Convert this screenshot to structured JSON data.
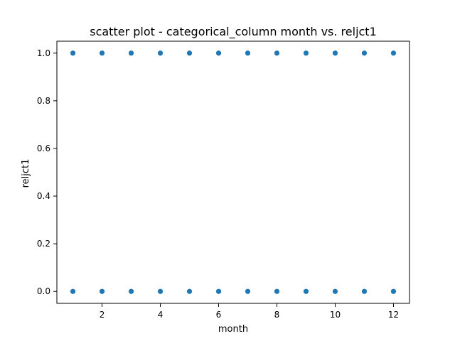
{
  "chart_data": {
    "type": "scatter",
    "title": "scatter plot - categorical_column month vs. reljct1",
    "xlabel": "month",
    "ylabel": "reljct1",
    "xlim": [
      0.45,
      12.55
    ],
    "ylim": [
      -0.05,
      1.05
    ],
    "xticks": [
      2,
      4,
      6,
      8,
      10,
      12
    ],
    "yticks": [
      0.0,
      0.2,
      0.4,
      0.6,
      0.8,
      1.0
    ],
    "xtick_labels": [
      "2",
      "4",
      "6",
      "8",
      "10",
      "12"
    ],
    "ytick_labels": [
      "0.0",
      "0.2",
      "0.4",
      "0.6",
      "0.8",
      "1.0"
    ],
    "grid": false,
    "legend": "none",
    "marker_color": "#1f77b4",
    "series": [
      {
        "x": [
          1,
          2,
          3,
          4,
          5,
          6,
          7,
          8,
          9,
          10,
          11,
          12,
          1,
          2,
          3,
          4,
          5,
          6,
          7,
          8,
          9,
          10,
          11,
          12
        ],
        "y": [
          1,
          1,
          1,
          1,
          1,
          1,
          1,
          1,
          1,
          1,
          1,
          1,
          0,
          0,
          0,
          0,
          0,
          0,
          0,
          0,
          0,
          0,
          0,
          0
        ]
      }
    ]
  }
}
